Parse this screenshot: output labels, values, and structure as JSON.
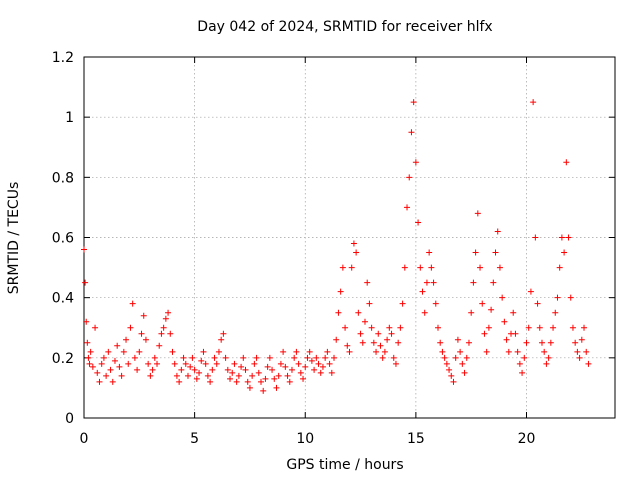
{
  "chart_data": {
    "type": "scatter",
    "title": "Day 042 of 2024, SRMTID for receiver hlfx",
    "xlabel": "GPS time / hours",
    "ylabel": "SRMTID / TECUs",
    "xlim": [
      0,
      24
    ],
    "ylim": [
      0,
      1.2
    ],
    "xticks": [
      0,
      5,
      10,
      15,
      20
    ],
    "yticks": [
      0,
      0.2,
      0.4,
      0.6,
      0.8,
      1,
      1.2
    ],
    "xtick_labels": [
      "0",
      "5",
      "10",
      "15",
      "20"
    ],
    "ytick_labels": [
      "0",
      "0.2",
      "0.4",
      "0.6",
      "0.8",
      "1",
      "1.2"
    ],
    "grid": true,
    "marker": "+",
    "color": "#ff0000",
    "series": [
      {
        "name": "SRMTID",
        "x": [
          0.0,
          0.05,
          0.1,
          0.15,
          0.2,
          0.25,
          0.3,
          0.4,
          0.5,
          0.6,
          0.7,
          0.8,
          0.9,
          1.0,
          1.1,
          1.2,
          1.3,
          1.4,
          1.5,
          1.6,
          1.7,
          1.8,
          1.9,
          2.0,
          2.1,
          2.2,
          2.3,
          2.4,
          2.5,
          2.6,
          2.7,
          2.8,
          2.9,
          3.0,
          3.1,
          3.2,
          3.3,
          3.4,
          3.5,
          3.6,
          3.7,
          3.8,
          3.9,
          4.0,
          4.1,
          4.2,
          4.3,
          4.4,
          4.5,
          4.6,
          4.7,
          4.8,
          4.9,
          5.0,
          5.1,
          5.2,
          5.3,
          5.4,
          5.5,
          5.6,
          5.7,
          5.8,
          5.9,
          6.0,
          6.1,
          6.2,
          6.3,
          6.4,
          6.5,
          6.6,
          6.7,
          6.8,
          6.9,
          7.0,
          7.1,
          7.2,
          7.3,
          7.4,
          7.5,
          7.6,
          7.7,
          7.8,
          7.9,
          8.0,
          8.1,
          8.2,
          8.3,
          8.4,
          8.5,
          8.6,
          8.7,
          8.8,
          8.9,
          9.0,
          9.1,
          9.2,
          9.3,
          9.4,
          9.5,
          9.6,
          9.7,
          9.8,
          9.9,
          10.0,
          10.1,
          10.2,
          10.3,
          10.4,
          10.5,
          10.6,
          10.7,
          10.8,
          10.9,
          11.0,
          11.1,
          11.2,
          11.3,
          11.4,
          11.5,
          11.6,
          11.7,
          11.8,
          11.9,
          12.0,
          12.1,
          12.2,
          12.3,
          12.4,
          12.5,
          12.6,
          12.7,
          12.8,
          12.9,
          13.0,
          13.1,
          13.2,
          13.3,
          13.4,
          13.5,
          13.6,
          13.7,
          13.8,
          13.9,
          14.0,
          14.1,
          14.2,
          14.3,
          14.4,
          14.5,
          14.6,
          14.7,
          14.8,
          14.9,
          15.0,
          15.1,
          15.2,
          15.3,
          15.4,
          15.5,
          15.6,
          15.7,
          15.8,
          15.9,
          16.0,
          16.1,
          16.2,
          16.3,
          16.4,
          16.5,
          16.6,
          16.7,
          16.8,
          16.9,
          17.0,
          17.1,
          17.2,
          17.3,
          17.4,
          17.5,
          17.6,
          17.7,
          17.8,
          17.9,
          18.0,
          18.1,
          18.2,
          18.3,
          18.4,
          18.5,
          18.6,
          18.7,
          18.8,
          18.9,
          19.0,
          19.1,
          19.2,
          19.3,
          19.4,
          19.5,
          19.6,
          19.7,
          19.8,
          19.9,
          20.0,
          20.1,
          20.2,
          20.3,
          20.4,
          20.5,
          20.6,
          20.7,
          20.8,
          20.9,
          21.0,
          21.1,
          21.2,
          21.3,
          21.4,
          21.5,
          21.6,
          21.7,
          21.8,
          21.9,
          22.0,
          22.1,
          22.2,
          22.3,
          22.4,
          22.5,
          22.6,
          22.7,
          22.8
        ],
        "y": [
          0.56,
          0.45,
          0.32,
          0.25,
          0.2,
          0.18,
          0.22,
          0.17,
          0.3,
          0.15,
          0.12,
          0.18,
          0.2,
          0.14,
          0.22,
          0.16,
          0.12,
          0.19,
          0.24,
          0.17,
          0.14,
          0.22,
          0.26,
          0.18,
          0.3,
          0.38,
          0.2,
          0.16,
          0.22,
          0.28,
          0.34,
          0.26,
          0.18,
          0.14,
          0.16,
          0.2,
          0.18,
          0.24,
          0.28,
          0.3,
          0.33,
          0.35,
          0.28,
          0.22,
          0.18,
          0.14,
          0.12,
          0.16,
          0.2,
          0.18,
          0.14,
          0.17,
          0.2,
          0.16,
          0.13,
          0.15,
          0.19,
          0.22,
          0.18,
          0.14,
          0.12,
          0.16,
          0.2,
          0.18,
          0.22,
          0.26,
          0.28,
          0.2,
          0.16,
          0.13,
          0.15,
          0.18,
          0.12,
          0.14,
          0.17,
          0.2,
          0.16,
          0.12,
          0.1,
          0.14,
          0.18,
          0.2,
          0.15,
          0.12,
          0.09,
          0.13,
          0.17,
          0.2,
          0.16,
          0.13,
          0.1,
          0.14,
          0.18,
          0.22,
          0.17,
          0.14,
          0.12,
          0.16,
          0.2,
          0.22,
          0.18,
          0.15,
          0.13,
          0.17,
          0.2,
          0.22,
          0.19,
          0.16,
          0.2,
          0.18,
          0.15,
          0.17,
          0.2,
          0.22,
          0.18,
          0.15,
          0.2,
          0.26,
          0.35,
          0.42,
          0.5,
          0.3,
          0.24,
          0.22,
          0.5,
          0.58,
          0.55,
          0.35,
          0.28,
          0.25,
          0.32,
          0.45,
          0.38,
          0.3,
          0.25,
          0.22,
          0.28,
          0.24,
          0.2,
          0.22,
          0.26,
          0.3,
          0.28,
          0.2,
          0.18,
          0.25,
          0.3,
          0.38,
          0.5,
          0.7,
          0.8,
          0.95,
          1.05,
          0.85,
          0.65,
          0.5,
          0.42,
          0.35,
          0.45,
          0.55,
          0.5,
          0.45,
          0.38,
          0.3,
          0.25,
          0.22,
          0.2,
          0.18,
          0.16,
          0.14,
          0.12,
          0.2,
          0.26,
          0.22,
          0.18,
          0.15,
          0.2,
          0.25,
          0.35,
          0.45,
          0.55,
          0.68,
          0.5,
          0.38,
          0.28,
          0.22,
          0.3,
          0.36,
          0.45,
          0.55,
          0.62,
          0.5,
          0.4,
          0.32,
          0.26,
          0.22,
          0.28,
          0.35,
          0.28,
          0.22,
          0.18,
          0.15,
          0.2,
          0.25,
          0.3,
          0.42,
          1.05,
          0.6,
          0.38,
          0.3,
          0.25,
          0.22,
          0.18,
          0.2,
          0.25,
          0.3,
          0.35,
          0.4,
          0.5,
          0.6,
          0.55,
          0.85,
          0.6,
          0.4,
          0.3,
          0.25,
          0.22,
          0.2,
          0.26,
          0.3,
          0.22,
          0.18
        ]
      }
    ]
  }
}
